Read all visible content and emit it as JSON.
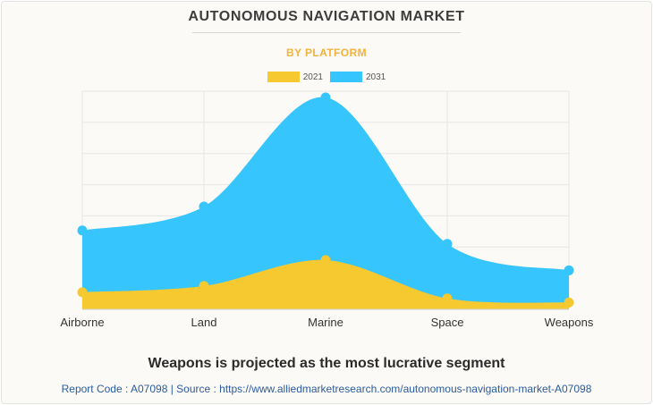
{
  "chart_data": {
    "type": "area",
    "title": "AUTONOMOUS NAVIGATION MARKET",
    "subtitle": "BY PLATFORM",
    "categories": [
      "Airborne",
      "Land",
      "Marine",
      "Space",
      "Weapons"
    ],
    "series": [
      {
        "name": "2031",
        "values": [
          25.3,
          33.0,
          68.0,
          21.0,
          12.5
        ],
        "color": "#36c5fd"
      },
      {
        "name": "2021",
        "values": [
          5.5,
          7.5,
          15.8,
          3.5,
          2.2
        ],
        "color": "#f6c930"
      }
    ],
    "ylim": [
      0,
      70
    ],
    "grid": true,
    "legend_position": "top-center",
    "xlabel": "",
    "ylabel": ""
  },
  "headline": "Weapons is projected as the most lucrative segment",
  "footer": "Report Code : A07098  |  Source : https://www.alliedmarketresearch.com/autonomous-navigation-market-A07098"
}
